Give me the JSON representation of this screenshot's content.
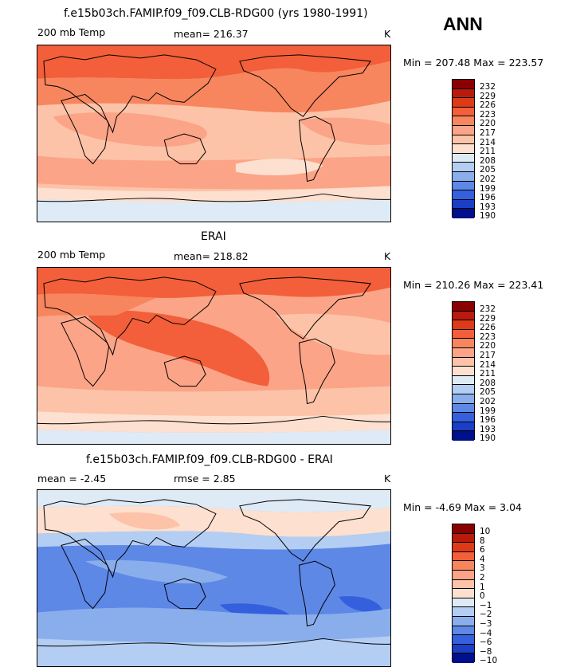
{
  "season": "ANN",
  "k_unit": "K",
  "panels": [
    {
      "id": "model",
      "title": "f.e15b03ch.FAMIP.f09_f09.CLB-RDG00 (yrs 1980-1991)",
      "left_label": "200 mb Temp",
      "mean_text": "mean=  216.37",
      "rmse_text": "",
      "minmax_text": "Min = 207.48 Max = 223.57"
    },
    {
      "id": "obs",
      "title": "ERAI",
      "left_label": "200 mb Temp",
      "mean_text": "mean=  218.82",
      "rmse_text": "",
      "minmax_text": "Min = 210.26 Max = 223.41"
    },
    {
      "id": "diff",
      "title": "f.e15b03ch.FAMIP.f09_f09.CLB-RDG00 - ERAI",
      "left_label": "",
      "mean_text": "mean =   -2.45",
      "rmse_text": "rmse =    2.85",
      "minmax_text": "Min =  -4.69 Max =    3.04"
    }
  ],
  "chart_data": [
    {
      "type": "heatmap",
      "title": "f.e15b03ch.FAMIP.f09_f09.CLB-RDG00 (yrs 1980-1991)",
      "variable": "200 mb Temp",
      "units": "K",
      "mean": 216.37,
      "min": 207.48,
      "max": 223.57,
      "colorbar_levels": [
        "232",
        "229",
        "226",
        "223",
        "220",
        "217",
        "214",
        "211",
        "208",
        "205",
        "202",
        "199",
        "196",
        "193",
        "190"
      ],
      "colorbar_colors": [
        "#8b0000",
        "#b81a0c",
        "#dd3a18",
        "#f25f3a",
        "#f7855e",
        "#fba487",
        "#fcc3a8",
        "#fde0cf",
        "#deebf7",
        "#b4cdf2",
        "#8aaeec",
        "#5d88e6",
        "#345fdd",
        "#1a3fc6",
        "#000f8a"
      ]
    },
    {
      "type": "heatmap",
      "title": "ERAI",
      "variable": "200 mb Temp",
      "units": "K",
      "mean": 218.82,
      "min": 210.26,
      "max": 223.41,
      "colorbar_levels": [
        "232",
        "229",
        "226",
        "223",
        "220",
        "217",
        "214",
        "211",
        "208",
        "205",
        "202",
        "199",
        "196",
        "193",
        "190"
      ],
      "colorbar_colors": [
        "#8b0000",
        "#b81a0c",
        "#dd3a18",
        "#f25f3a",
        "#f7855e",
        "#fba487",
        "#fcc3a8",
        "#fde0cf",
        "#deebf7",
        "#b4cdf2",
        "#8aaeec",
        "#5d88e6",
        "#345fdd",
        "#1a3fc6",
        "#000f8a"
      ]
    },
    {
      "type": "heatmap",
      "title": "f.e15b03ch.FAMIP.f09_f09.CLB-RDG00 - ERAI",
      "units": "K",
      "mean": -2.45,
      "rmse": 2.85,
      "min": -4.69,
      "max": 3.04,
      "colorbar_levels": [
        "10",
        "8",
        "6",
        "4",
        "3",
        "2",
        "1",
        "0",
        "−1",
        "−2",
        "−3",
        "−4",
        "−6",
        "−8",
        "−10"
      ],
      "colorbar_colors": [
        "#8b0000",
        "#b81a0c",
        "#dd3a18",
        "#f25f3a",
        "#f7855e",
        "#fba487",
        "#fcc3a8",
        "#fde0cf",
        "#deebf7",
        "#b4cdf2",
        "#8aaeec",
        "#5d88e6",
        "#345fdd",
        "#1a3fc6",
        "#000f8a"
      ]
    }
  ]
}
